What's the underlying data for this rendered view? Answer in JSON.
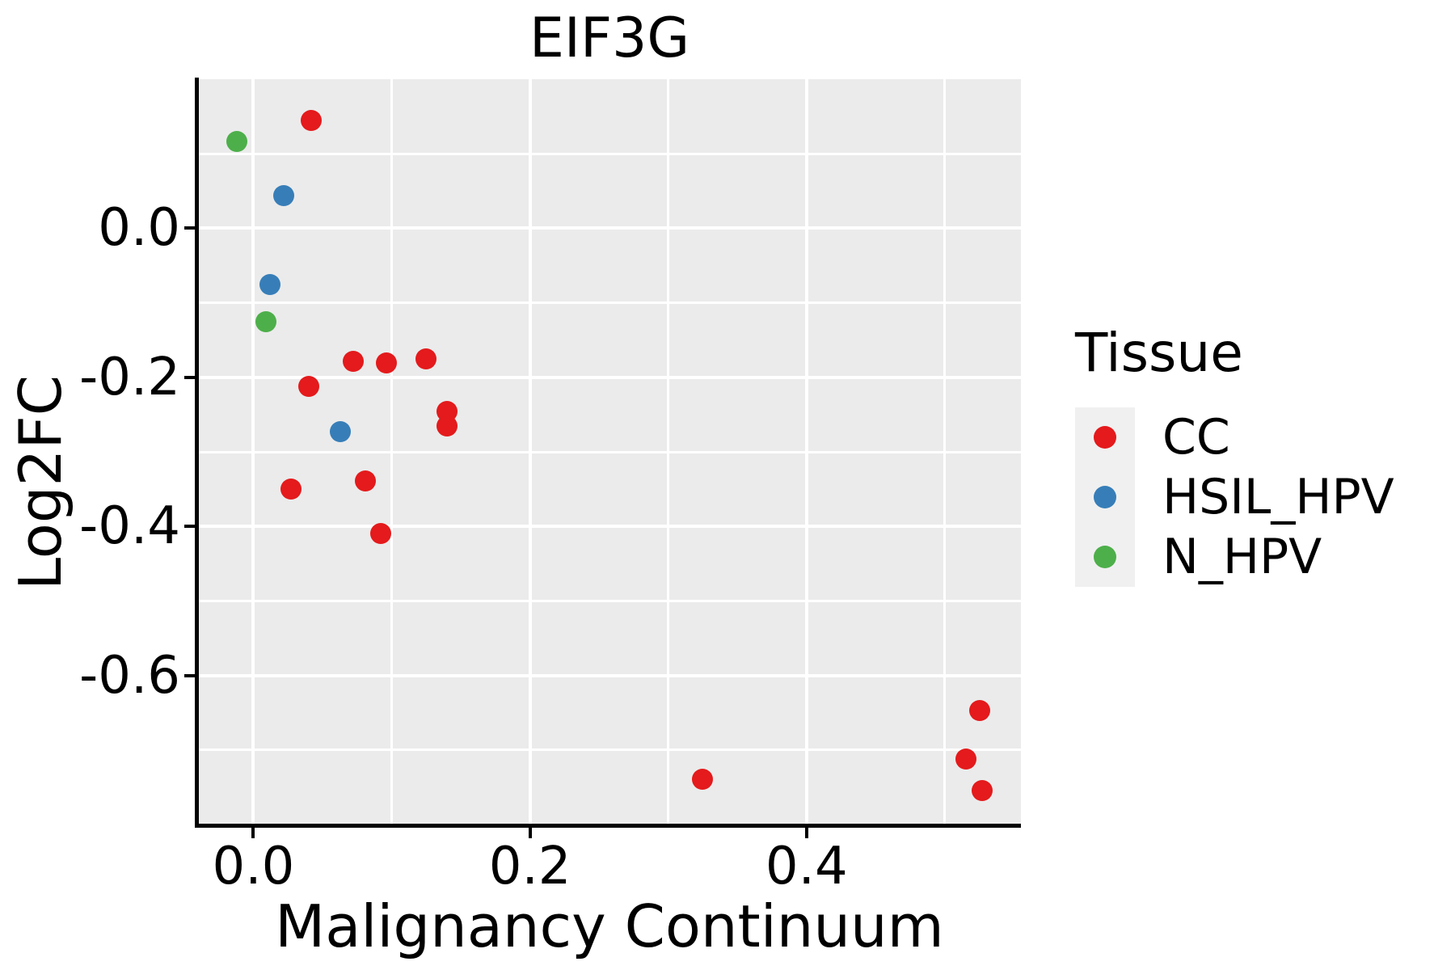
{
  "title": "EIF3G",
  "axes": {
    "x": {
      "label": "Malignancy Continuum",
      "tick_values": [
        0.0,
        0.2,
        0.4
      ],
      "tick_labels": [
        "0.0",
        "0.2",
        "0.4"
      ],
      "gridlines_major": [
        0.0,
        0.2,
        0.4
      ],
      "gridlines_minor": [
        0.1,
        0.3,
        0.5
      ]
    },
    "y": {
      "label": "Log2FC",
      "tick_values": [
        0.0,
        -0.2,
        -0.4,
        -0.6
      ],
      "tick_labels": [
        "0.0",
        "-0.2",
        "-0.4",
        "-0.6"
      ],
      "gridlines_major": [
        0.0,
        -0.2,
        -0.4,
        -0.6
      ],
      "gridlines_minor": [
        0.1,
        -0.1,
        -0.3,
        -0.5,
        -0.7
      ]
    }
  },
  "legend": {
    "title": "Tissue",
    "items": [
      {
        "label": "CC",
        "color": "#E41A1C"
      },
      {
        "label": "HSIL_HPV",
        "color": "#377EB8"
      },
      {
        "label": "N_HPV",
        "color": "#4DAF4A"
      }
    ]
  },
  "colors": {
    "panel_background": "#EBEBEB",
    "gridline": "#FFFFFF",
    "axis": "#000000",
    "legend_key_background": "#F0F0F0"
  },
  "chart_data": {
    "type": "scatter",
    "title": "EIF3G",
    "xlabel": "Malignancy Continuum",
    "ylabel": "Log2FC",
    "xlim": [
      -0.04,
      0.555
    ],
    "ylim": [
      -0.8,
      0.2
    ],
    "grid": true,
    "legend_position": "right",
    "legend_title": "Tissue",
    "series": [
      {
        "name": "CC",
        "color": "#E41A1C",
        "points": [
          [
            0.042,
            0.145
          ],
          [
            0.04,
            -0.212
          ],
          [
            0.027,
            -0.35
          ],
          [
            0.072,
            -0.179
          ],
          [
            0.096,
            -0.181
          ],
          [
            0.125,
            -0.175
          ],
          [
            0.14,
            -0.246
          ],
          [
            0.14,
            -0.265
          ],
          [
            0.081,
            -0.339
          ],
          [
            0.092,
            -0.41
          ],
          [
            0.325,
            -0.739
          ],
          [
            0.525,
            -0.647
          ],
          [
            0.515,
            -0.712
          ],
          [
            0.527,
            -0.754
          ]
        ]
      },
      {
        "name": "HSIL_HPV",
        "color": "#377EB8",
        "points": [
          [
            0.022,
            0.044
          ],
          [
            0.012,
            -0.075
          ],
          [
            0.063,
            -0.273
          ]
        ]
      },
      {
        "name": "N_HPV",
        "color": "#4DAF4A",
        "points": [
          [
            -0.012,
            0.116
          ],
          [
            0.009,
            -0.125
          ]
        ]
      }
    ]
  }
}
